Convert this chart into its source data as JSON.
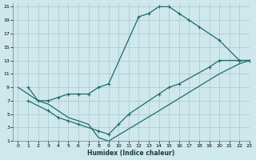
{
  "xlabel": "Humidex (Indice chaleur)",
  "bg_color": "#cfe8eb",
  "grid_color": "#aacdd2",
  "line_color": "#1e6b6b",
  "xlim": [
    -0.5,
    23
  ],
  "ylim": [
    1,
    21.5
  ],
  "xticks": [
    0,
    1,
    2,
    3,
    4,
    5,
    6,
    7,
    8,
    9,
    10,
    11,
    12,
    13,
    14,
    15,
    16,
    17,
    18,
    19,
    20,
    21,
    22,
    23
  ],
  "yticks": [
    1,
    3,
    5,
    7,
    9,
    11,
    13,
    15,
    17,
    19,
    21
  ],
  "line1_x": [
    1,
    2,
    3,
    4,
    5,
    6,
    7,
    8,
    9,
    12,
    13,
    14,
    15,
    16,
    17,
    18,
    20,
    22,
    23
  ],
  "line1_y": [
    9.0,
    7.0,
    7.0,
    7.5,
    8.0,
    8.0,
    8.0,
    9.0,
    9.5,
    19.5,
    20.0,
    21.0,
    21.0,
    20.0,
    19.0,
    18.0,
    16.0,
    13.0,
    13.0
  ],
  "line2_x": [
    1,
    3,
    4,
    5,
    6,
    8,
    9,
    10,
    11,
    14,
    15,
    16,
    19,
    20,
    22,
    23
  ],
  "line2_y": [
    7.0,
    5.5,
    4.5,
    4.0,
    3.5,
    2.5,
    2.0,
    3.5,
    5.0,
    8.0,
    9.0,
    9.5,
    12.0,
    13.0,
    13.0,
    13.0
  ],
  "line3_x": [
    0,
    2,
    3,
    4,
    5,
    6,
    7,
    8,
    9,
    14,
    20,
    22,
    23
  ],
  "line3_y": [
    9.0,
    7.0,
    6.5,
    5.5,
    4.5,
    4.0,
    3.5,
    1.5,
    1.0,
    5.5,
    11.0,
    12.5,
    13.0
  ]
}
